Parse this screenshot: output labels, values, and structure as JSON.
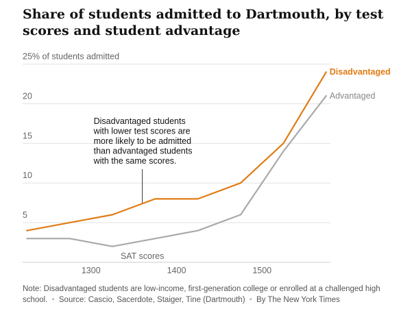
{
  "title": "Share of students admitted to Dartmouth, by test scores and student advantage",
  "chart_data": {
    "type": "line",
    "title": "Share of students admitted to Dartmouth, by test scores and student advantage",
    "xlabel": "SAT scores",
    "ylabel": "% of students admitted",
    "xlim": [
      1220,
      1580
    ],
    "ylim": [
      0,
      26
    ],
    "y_ticks": [
      {
        "value": 25,
        "label": "25% of students admitted"
      },
      {
        "value": 20,
        "label": "20"
      },
      {
        "value": 15,
        "label": "15"
      },
      {
        "value": 10,
        "label": "10"
      },
      {
        "value": 5,
        "label": "5"
      }
    ],
    "x_ticks": [
      {
        "value": 1300,
        "label": "1300"
      },
      {
        "value": 1400,
        "label": "1400"
      },
      {
        "value": 1500,
        "label": "1500"
      }
    ],
    "x": [
      1225,
      1275,
      1325,
      1375,
      1425,
      1475,
      1525,
      1575
    ],
    "series": [
      {
        "name": "Disadvantaged",
        "color": "#e07b14",
        "values": [
          4,
          5,
          6,
          8,
          8,
          10,
          15,
          24
        ]
      },
      {
        "name": "Advantaged",
        "color": "#a9a9a9",
        "values": [
          3,
          3,
          2,
          3,
          4,
          6,
          14,
          21
        ]
      }
    ],
    "annotation": {
      "text": "Disadvantaged students with lower test scores are more likely to be admitted than advantaged students with the same scores.",
      "lines": [
        "Disadvantaged students",
        "with lower test scores are",
        "more likely to be admitted",
        "than advantaged students",
        "with the same scores."
      ],
      "x": 1360,
      "y": 7.3
    }
  },
  "note": {
    "text": "Note: Disadvantaged students are low-income, first-generation college or enrolled at a challenged high school.",
    "source": "Source: Cascio, Sacerdote, Staiger, Tine (Dartmouth)",
    "credit": "By The New York Times"
  },
  "colors": {
    "disadvantaged": "#e07b14",
    "advantaged": "#a9a9a9",
    "grid": "#e2e2e2",
    "axis_text": "#666666"
  }
}
